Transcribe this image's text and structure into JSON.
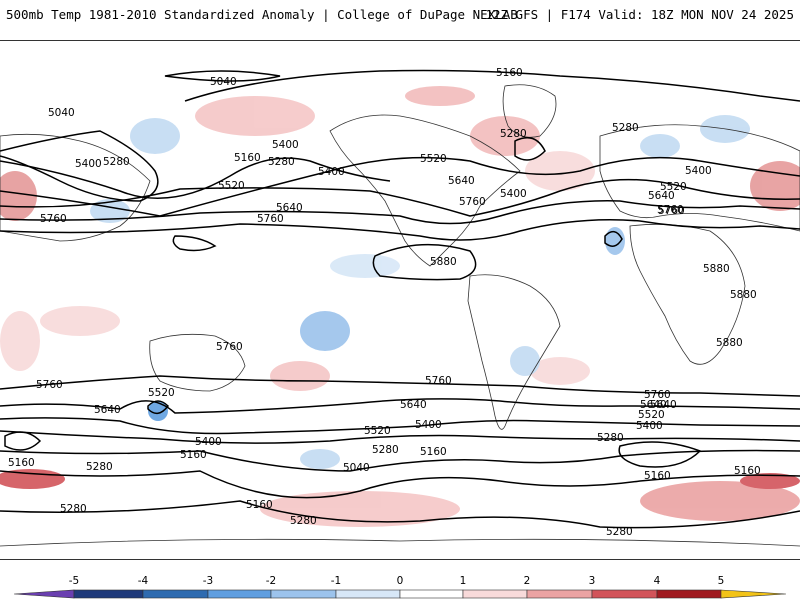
{
  "header": {
    "title_left": "500mb Temp 1981-2010 Standardized Anomaly | College of DuPage NEXLAB",
    "title_right": "12Z GFS | F174 Valid: 18Z MON NOV 24 2025"
  },
  "map": {
    "contour_labels": [
      "5040",
      "5160",
      "5040",
      "5400",
      "5280",
      "5160",
      "5280",
      "5400",
      "5520",
      "5760",
      "5640",
      "5760",
      "5400",
      "5280",
      "5520",
      "5640",
      "5760",
      "5400",
      "5280",
      "5400",
      "5520",
      "5640",
      "5760",
      "5880",
      "5880",
      "5880",
      "5880",
      "5760",
      "5760",
      "5760",
      "5640",
      "5520",
      "5400",
      "5160",
      "5280",
      "5640",
      "5520",
      "5400",
      "5280",
      "5160",
      "5040",
      "5160",
      "5280",
      "5160",
      "5280",
      "5640",
      "5760",
      "5760",
      "5640",
      "5520",
      "5400",
      "5280",
      "5160",
      "5280",
      "5160"
    ]
  },
  "colorbar": {
    "tick_labels": [
      "-5",
      "-4",
      "-3",
      "-2",
      "-1",
      "0",
      "1",
      "2",
      "3",
      "4",
      "5"
    ],
    "colors": {
      "left_arrow": "#6a3fb0",
      "seg_neg5": "#1f3a7a",
      "seg_neg4": "#2e6bb0",
      "seg_neg3": "#5f9ee0",
      "seg_neg2": "#9cc3ec",
      "seg_neg1": "#d7e7f7",
      "seg_0": "#ffffff",
      "seg_1": "#f8dada",
      "seg_2": "#eba3a3",
      "seg_3": "#d2545a",
      "seg_4": "#a01a20",
      "seg_5": "#6e0c12",
      "right_arrow": "#f2c318"
    }
  }
}
